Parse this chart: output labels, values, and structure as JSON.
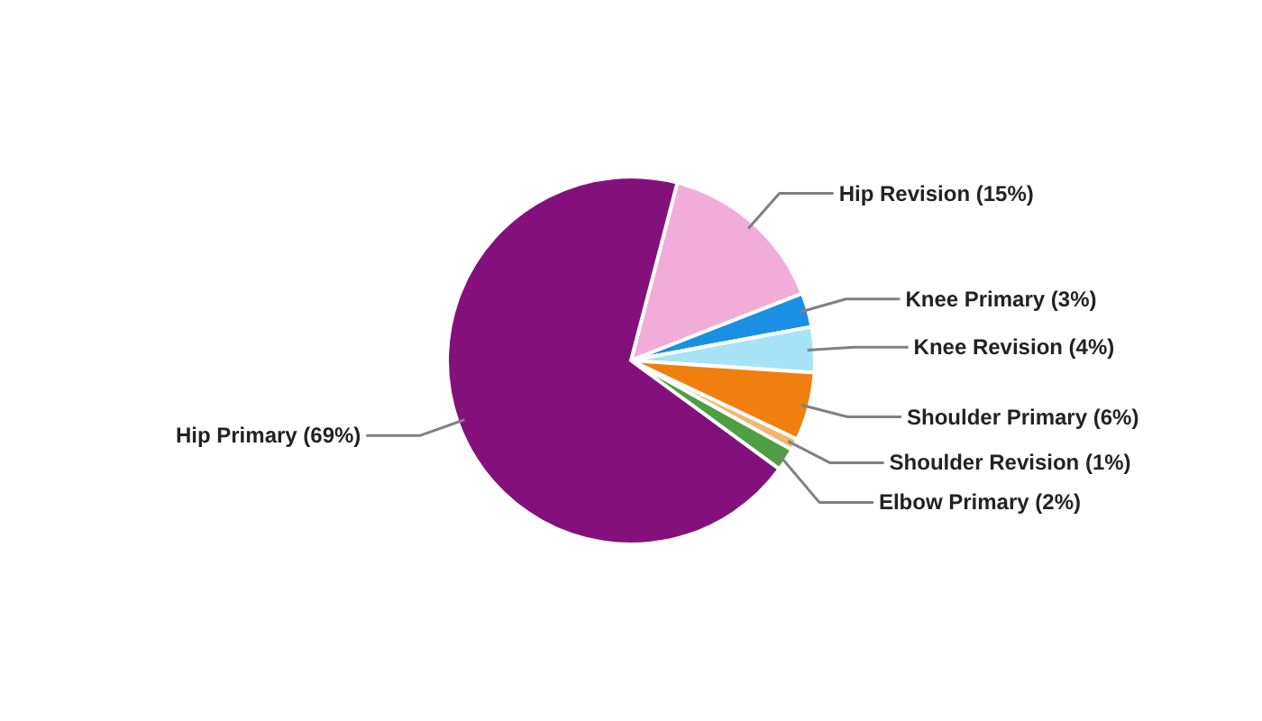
{
  "chart_data": {
    "type": "pie",
    "categories": [
      "Hip Revision (15%)",
      "Knee Primary (3%)",
      "Knee Revision (4%)",
      "Shoulder Primary (6%)",
      "Shoulder Revision (1%)",
      "Elbow Primary (2%)",
      "Hip Primary (69%)"
    ],
    "values": [
      15,
      3,
      4,
      6,
      1,
      2,
      69
    ],
    "colors": [
      "#f2acd9",
      "#1a8fe3",
      "#a6e3f7",
      "#f07f10",
      "#f5b56e",
      "#4e9f43",
      "#84117b"
    ]
  }
}
